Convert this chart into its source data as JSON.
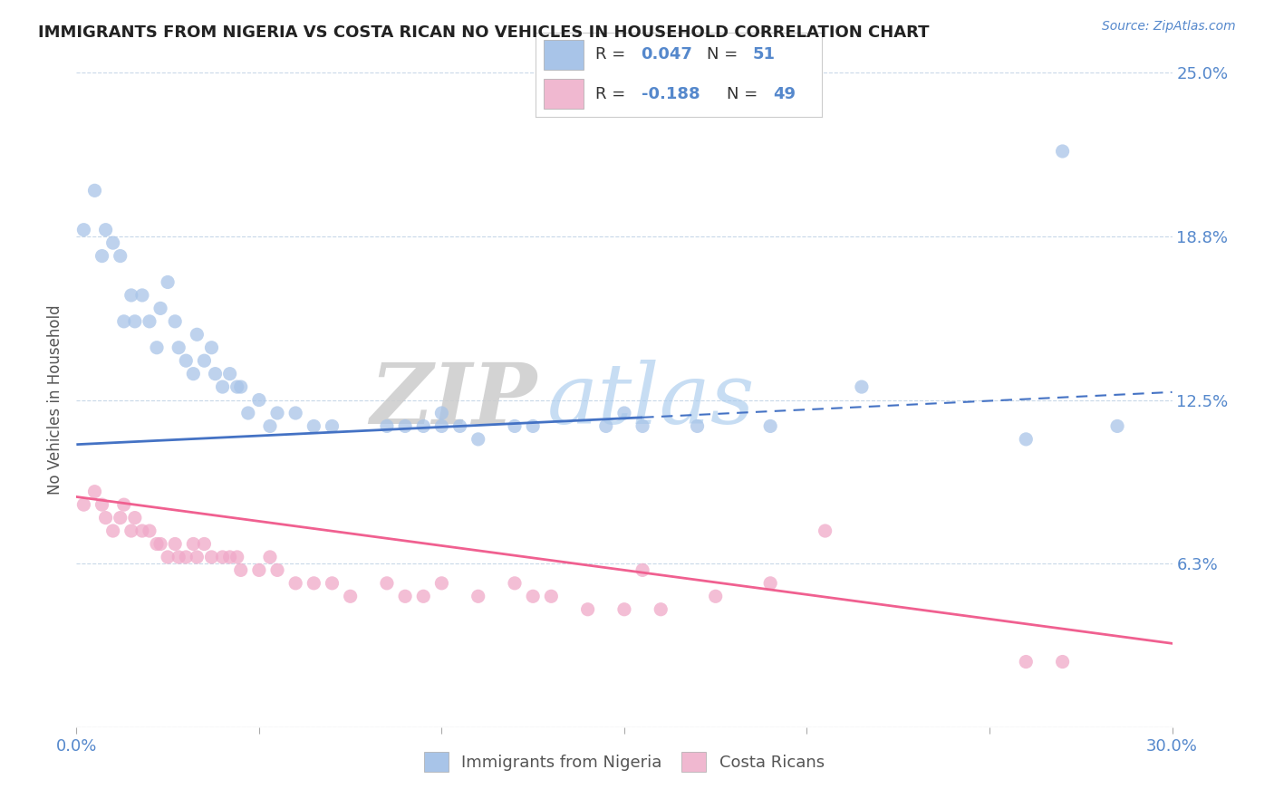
{
  "title": "IMMIGRANTS FROM NIGERIA VS COSTA RICAN NO VEHICLES IN HOUSEHOLD CORRELATION CHART",
  "source_text": "Source: ZipAtlas.com",
  "ylabel": "No Vehicles in Household",
  "xmin": 0.0,
  "xmax": 0.3,
  "ymin": 0.0,
  "ymax": 0.25,
  "ytick_vals": [
    0.0,
    0.0625,
    0.125,
    0.1875,
    0.25
  ],
  "ytick_labels": [
    "",
    "6.3%",
    "12.5%",
    "18.8%",
    "25.0%"
  ],
  "color_nigeria": "#a8c4e8",
  "color_costarican": "#f0a8c8",
  "color_nigeria_line": "#4472c4",
  "color_costarican_line": "#f06090",
  "color_legend_box_nigeria": "#a8c4e8",
  "color_legend_box_costarican": "#f0b8d0",
  "color_axis_labels": "#5588cc",
  "color_title": "#222222",
  "color_watermark_zip": "#cccccc",
  "color_watermark_atlas": "#aaccee",
  "grid_color": "#c8d8e8",
  "background_color": "#ffffff",
  "legend_label_nigeria": "Immigrants from Nigeria",
  "legend_label_costarican": "Costa Ricans",
  "nigeria_line_start_y": 0.108,
  "nigeria_line_end_y": 0.128,
  "nigeria_line_solid_end_x": 0.155,
  "costarican_line_start_y": 0.088,
  "costarican_line_end_y": 0.032,
  "nigeria_scatter_x": [
    0.002,
    0.005,
    0.007,
    0.008,
    0.01,
    0.012,
    0.013,
    0.015,
    0.016,
    0.018,
    0.02,
    0.022,
    0.023,
    0.025,
    0.027,
    0.028,
    0.03,
    0.032,
    0.033,
    0.035,
    0.037,
    0.038,
    0.04,
    0.042,
    0.044,
    0.045,
    0.047,
    0.05,
    0.053,
    0.055,
    0.06,
    0.065,
    0.07,
    0.085,
    0.09,
    0.095,
    0.1,
    0.1,
    0.105,
    0.11,
    0.12,
    0.125,
    0.15,
    0.17,
    0.19,
    0.155,
    0.215,
    0.145,
    0.26,
    0.27,
    0.285
  ],
  "nigeria_scatter_y": [
    0.19,
    0.205,
    0.18,
    0.19,
    0.185,
    0.18,
    0.155,
    0.165,
    0.155,
    0.165,
    0.155,
    0.145,
    0.16,
    0.17,
    0.155,
    0.145,
    0.14,
    0.135,
    0.15,
    0.14,
    0.145,
    0.135,
    0.13,
    0.135,
    0.13,
    0.13,
    0.12,
    0.125,
    0.115,
    0.12,
    0.12,
    0.115,
    0.115,
    0.115,
    0.115,
    0.115,
    0.12,
    0.115,
    0.115,
    0.11,
    0.115,
    0.115,
    0.12,
    0.115,
    0.115,
    0.115,
    0.13,
    0.115,
    0.11,
    0.22,
    0.115
  ],
  "costarican_scatter_x": [
    0.002,
    0.005,
    0.007,
    0.008,
    0.01,
    0.012,
    0.013,
    0.015,
    0.016,
    0.018,
    0.02,
    0.022,
    0.023,
    0.025,
    0.027,
    0.028,
    0.03,
    0.032,
    0.033,
    0.035,
    0.037,
    0.04,
    0.042,
    0.044,
    0.045,
    0.05,
    0.053,
    0.055,
    0.06,
    0.065,
    0.07,
    0.075,
    0.085,
    0.09,
    0.095,
    0.1,
    0.11,
    0.12,
    0.125,
    0.13,
    0.14,
    0.15,
    0.155,
    0.16,
    0.175,
    0.19,
    0.205,
    0.26,
    0.27
  ],
  "costarican_scatter_y": [
    0.085,
    0.09,
    0.085,
    0.08,
    0.075,
    0.08,
    0.085,
    0.075,
    0.08,
    0.075,
    0.075,
    0.07,
    0.07,
    0.065,
    0.07,
    0.065,
    0.065,
    0.07,
    0.065,
    0.07,
    0.065,
    0.065,
    0.065,
    0.065,
    0.06,
    0.06,
    0.065,
    0.06,
    0.055,
    0.055,
    0.055,
    0.05,
    0.055,
    0.05,
    0.05,
    0.055,
    0.05,
    0.055,
    0.05,
    0.05,
    0.045,
    0.045,
    0.06,
    0.045,
    0.05,
    0.055,
    0.075,
    0.025,
    0.025
  ]
}
